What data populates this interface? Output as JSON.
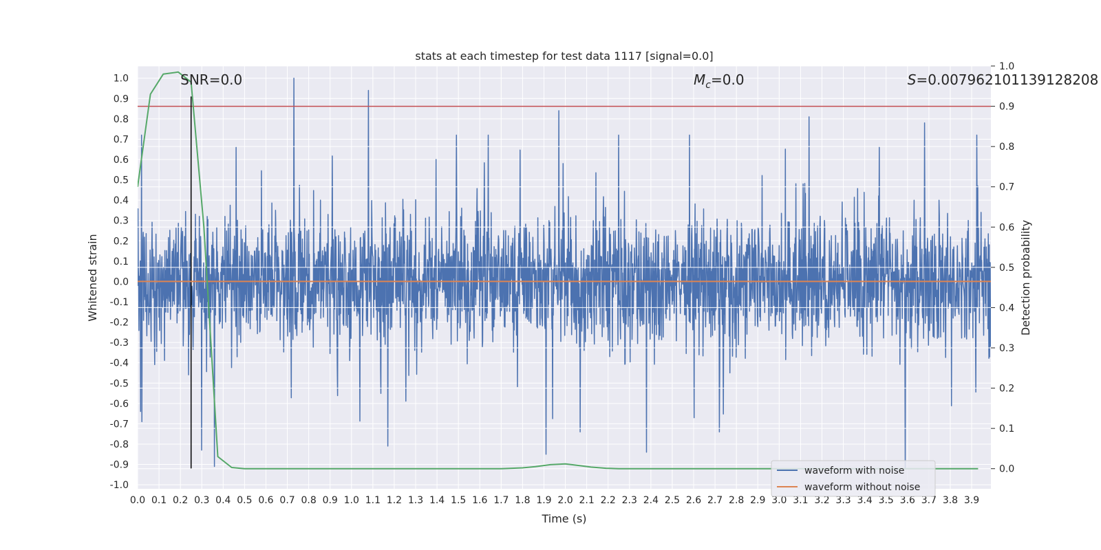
{
  "chart_data": {
    "type": "line",
    "title": "stats at each timestep for test data 1117 [signal=0.0]",
    "xlabel": "Time (s)",
    "ylabel": "Whitened strain",
    "y2label": "Detection probability",
    "xlim": [
      0.0,
      3.99
    ],
    "ylim": [
      -1.02,
      1.06
    ],
    "y2lim": [
      -0.05,
      1.0
    ],
    "xticks": [
      "0.0",
      "0.1",
      "0.2",
      "0.3",
      "0.4",
      "0.5",
      "0.6",
      "0.7",
      "0.8",
      "0.9",
      "1.0",
      "1.1",
      "1.2",
      "1.3",
      "1.4",
      "1.5",
      "1.6",
      "1.7",
      "1.8",
      "1.9",
      "2.0",
      "2.1",
      "2.2",
      "2.3",
      "2.4",
      "2.5",
      "2.6",
      "2.7",
      "2.8",
      "2.9",
      "3.0",
      "3.1",
      "3.2",
      "3.3",
      "3.4",
      "3.5",
      "3.6",
      "3.7",
      "3.8",
      "3.9"
    ],
    "yticks": [
      "1.0",
      "0.9",
      "0.8",
      "0.7",
      "0.6",
      "0.5",
      "0.4",
      "0.3",
      "0.2",
      "0.1",
      "0.0",
      "-0.1",
      "-0.2",
      "-0.3",
      "-0.4",
      "-0.5",
      "-0.6",
      "-0.7",
      "-0.8",
      "-0.9",
      "-1.0"
    ],
    "y2ticks": [
      "1.0",
      "0.9",
      "0.8",
      "0.7",
      "0.6",
      "0.5",
      "0.4",
      "0.3",
      "0.2",
      "0.1",
      "0.0"
    ],
    "grid": true,
    "legend_placement": "lower-right",
    "series": [
      {
        "name": "waveform with noise",
        "color": "#4c72b0",
        "style": "dense noisy trace spanning roughly -0.9 to 1.0",
        "peaks": [
          {
            "x": 0.73,
            "y": 1.0
          },
          {
            "x": 1.08,
            "y": 0.94
          },
          {
            "x": 1.97,
            "y": 0.84
          },
          {
            "x": 1.91,
            "y": 0.82
          },
          {
            "x": 3.14,
            "y": 0.81
          },
          {
            "x": 3.68,
            "y": 0.78
          },
          {
            "x": 0.46,
            "y": 0.66
          },
          {
            "x": 2.58,
            "y": 0.72
          }
        ],
        "troughs": [
          {
            "x": 3.59,
            "y": -0.92
          },
          {
            "x": 0.36,
            "y": -0.91
          },
          {
            "x": 1.91,
            "y": -0.85
          },
          {
            "x": 2.38,
            "y": -0.84
          },
          {
            "x": 1.17,
            "y": -0.81
          },
          {
            "x": 0.3,
            "y": -0.83
          },
          {
            "x": 2.72,
            "y": -0.74
          },
          {
            "x": 2.07,
            "y": -0.74
          },
          {
            "x": 0.02,
            "y": -0.69
          }
        ]
      },
      {
        "name": "waveform without noise",
        "color": "#dd8452",
        "x": [
          0.0,
          3.99
        ],
        "y": [
          0.0,
          0.0
        ]
      },
      {
        "axis": "y2",
        "color": "#55a868",
        "x": [
          0.0,
          0.06,
          0.12,
          0.19,
          0.25,
          0.31,
          0.375,
          0.44,
          0.5,
          1.0,
          1.5,
          1.7,
          1.8,
          1.86,
          1.93,
          2.0,
          2.06,
          2.12,
          2.19,
          2.25,
          2.5,
          3.0,
          3.5,
          3.93
        ],
        "y": [
          0.7,
          0.93,
          0.98,
          0.985,
          0.96,
          0.6,
          0.03,
          0.003,
          0.0,
          0.0,
          0.0,
          0.0,
          0.002,
          0.005,
          0.01,
          0.012,
          0.008,
          0.004,
          0.001,
          0.0,
          0.0,
          0.0,
          0.0,
          0.0
        ]
      }
    ],
    "reference_lines": [
      {
        "kind": "horizontal",
        "axis": "y2",
        "value": 0.9,
        "color": "#c44e52"
      },
      {
        "kind": "vertical",
        "value": 0.25,
        "color": "#000000",
        "ymin": -0.92,
        "ymax": 0.91
      }
    ],
    "annotations": [
      {
        "text": "SNR=0.0",
        "x": 0.2,
        "y": 1.0
      },
      {
        "text_prefix": "M",
        "text_sub": "c",
        "text_suffix": "=0.0",
        "x": 2.6,
        "y": 1.0
      },
      {
        "text_prefix": "S",
        "text_suffix": "=0.007962101139128208",
        "x": 3.6,
        "y": 1.0
      }
    ]
  }
}
